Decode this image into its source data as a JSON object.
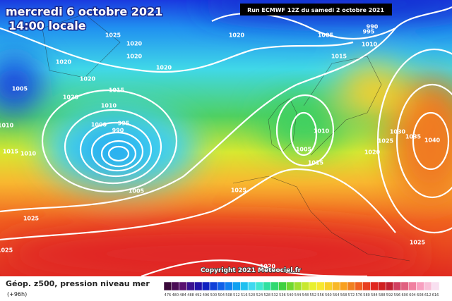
{
  "header": {
    "date": "mercredi 6 octobre 2021",
    "time": "14:00 locale",
    "run": "Run ECMWF 12Z du samedi 2 octobre 2021"
  },
  "isobar_labels": [
    "1025",
    "1020",
    "1020",
    "1020",
    "1020",
    "1005",
    "1020",
    "1020",
    "1015",
    "1010",
    "1010",
    "1000",
    "995",
    "990",
    "1020",
    "1005",
    "990",
    "995",
    "1010",
    "1015",
    "1010",
    "1005",
    "1015",
    "1020",
    "1025",
    "1030",
    "1035",
    "1040",
    "1025",
    "1005",
    "1025",
    "1025",
    "1020",
    "1025",
    "1015",
    "1010"
  ],
  "copyright": "Copyright 2021 Meteociel.fr",
  "legend": {
    "title": "Géop. z500, pression niveau mer",
    "lead": "(+96h)",
    "scale_labels": [
      "476",
      "480",
      "484",
      "488",
      "492",
      "496",
      "500",
      "504",
      "508",
      "512",
      "516",
      "520",
      "524",
      "528",
      "532",
      "536",
      "540",
      "544",
      "548",
      "552",
      "556",
      "560",
      "564",
      "568",
      "572",
      "576",
      "580",
      "584",
      "588",
      "592",
      "596",
      "600",
      "604",
      "608",
      "612",
      "616"
    ],
    "colors": [
      "#3a0a3a",
      "#4a0d55",
      "#5a1070",
      "#3a1090",
      "#2010a8",
      "#1020c0",
      "#1040d8",
      "#1060e8",
      "#1080f0",
      "#10a0f0",
      "#20c0f0",
      "#40d8f0",
      "#40e8d0",
      "#30e0a0",
      "#30d870",
      "#40d040",
      "#70d830",
      "#a0e030",
      "#c8e830",
      "#e8f030",
      "#f8e830",
      "#f8d028",
      "#f8b828",
      "#f8a020",
      "#f08020",
      "#f06020",
      "#e84020",
      "#e02820",
      "#d02020",
      "#c02030",
      "#d04060",
      "#e06080",
      "#f080a0",
      "#f8a0c0",
      "#f8c0d8",
      "#f8e0f0"
    ]
  }
}
